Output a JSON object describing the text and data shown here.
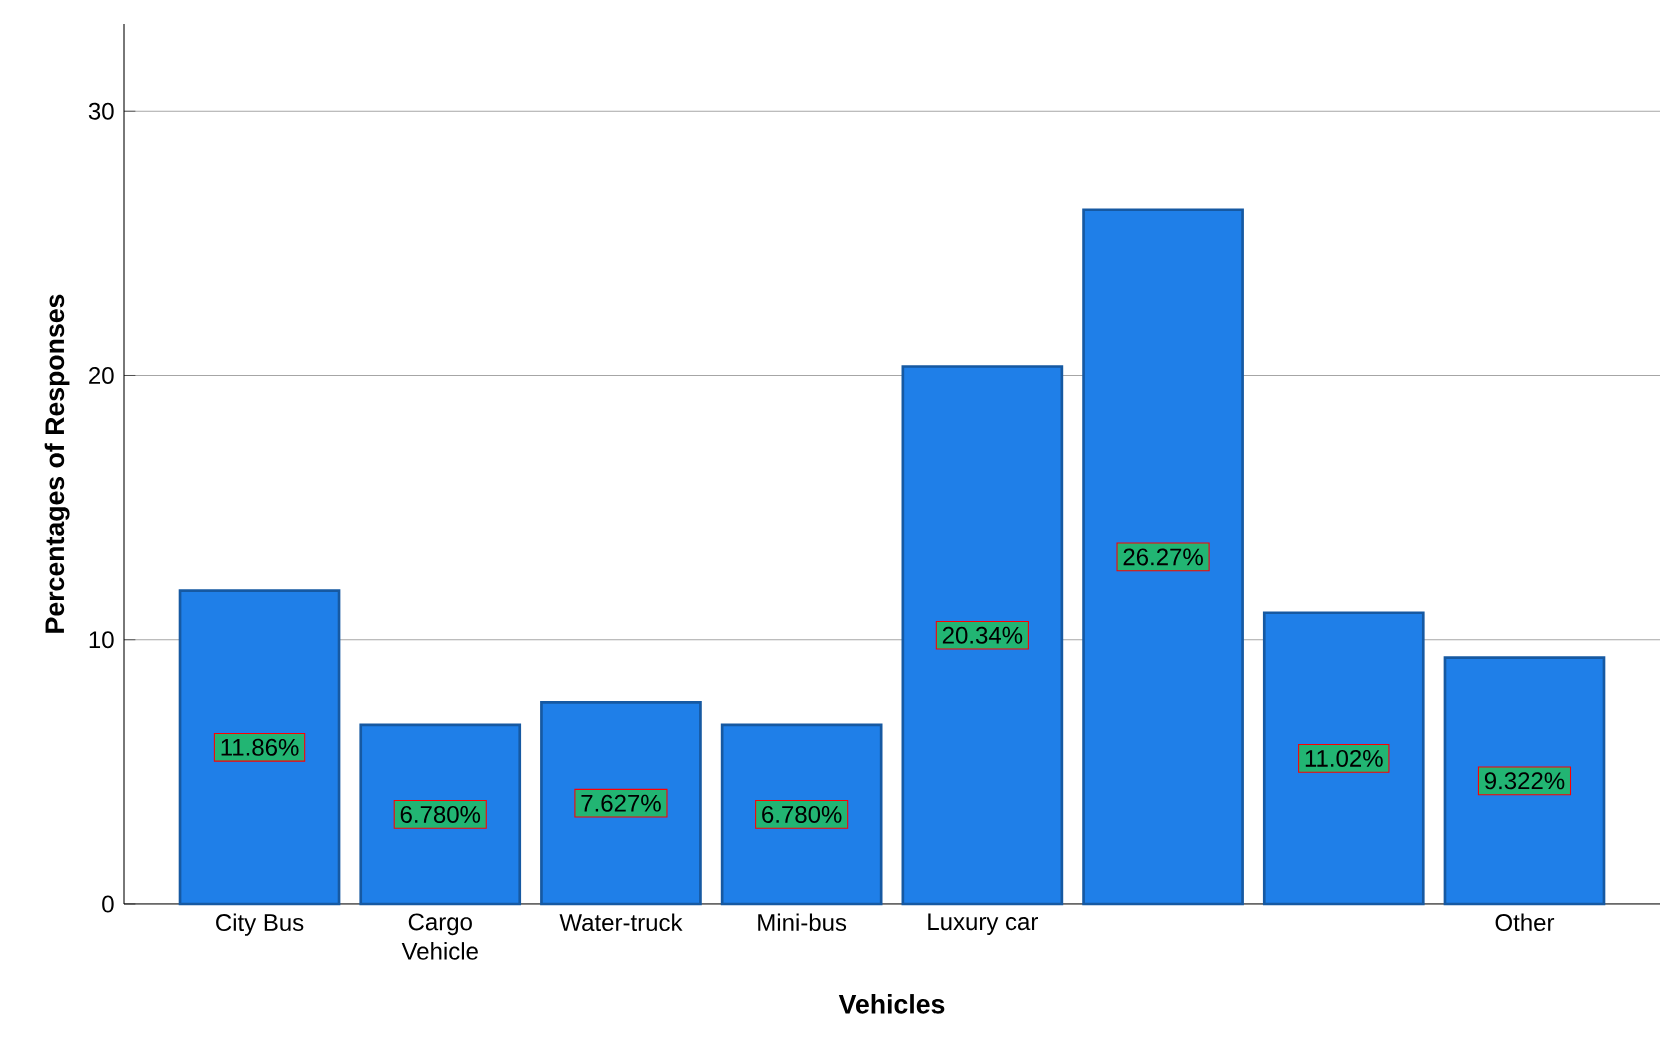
{
  "chart_data": {
    "type": "bar",
    "xlabel": "Vehicles",
    "ylabel": "Percentages of Responses",
    "categories": [
      "City Bus",
      "Cargo Vehicle",
      "Water-truck",
      "Mini-bus",
      "Luxury car",
      null,
      null,
      "Other"
    ],
    "values": [
      11.86,
      6.78,
      7.627,
      6.78,
      20.34,
      26.27,
      11.02,
      9.322
    ],
    "value_labels": [
      "11.86%",
      "6.780%",
      "7.627%",
      "6.780%",
      "20.34%",
      "26.27%",
      "11.02%",
      "9.322%"
    ],
    "color": "#1f7fe8",
    "ylim": [
      0,
      33.3
    ],
    "yticks": [
      0,
      10,
      20,
      30
    ],
    "grid": "y"
  }
}
